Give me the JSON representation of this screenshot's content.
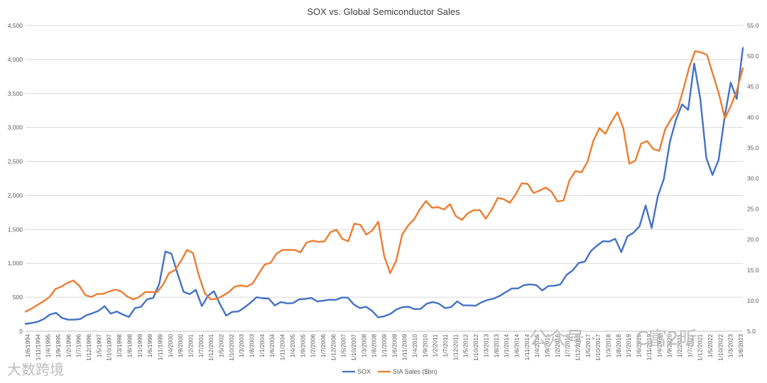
{
  "chart_data": {
    "type": "line",
    "title": "SOX vs. Global Semiconductor Sales",
    "xlabel": "",
    "ylabel": "",
    "y_left_lim": [
      0,
      4500
    ],
    "y_left_ticks": [
      "0",
      "500",
      "1,000",
      "1,500",
      "2,000",
      "2,500",
      "3,000",
      "3,500",
      "4,000",
      "4,500"
    ],
    "y_right_lim": [
      5.0,
      55.0
    ],
    "y_right_ticks": [
      "5.0",
      "10.0",
      "15.0",
      "20.0",
      "25.0",
      "30.0",
      "35.0",
      "40.0",
      "45.0",
      "50.0",
      "55.0"
    ],
    "grid": "horizontal",
    "legend_position": "bottom",
    "x_labels": [
      "1/6/1994",
      "1/11/1994",
      "1/4/1995",
      "1/9/1995",
      "1/2/1996",
      "1/7/1996",
      "1/12/1996",
      "1/5/1997",
      "1/10/1997",
      "1/3/1998",
      "1/8/1998",
      "1/1/1999",
      "1/6/1999",
      "1/11/1999",
      "1/4/2000",
      "1/9/2000",
      "1/2/2001",
      "1/7/2001",
      "1/12/2001",
      "1/5/2002",
      "1/10/2002",
      "1/3/2003",
      "1/8/2003",
      "1/1/2004",
      "1/6/2004",
      "1/11/2004",
      "1/4/2005",
      "1/9/2005",
      "1/2/2006",
      "1/7/2006",
      "1/12/2006",
      "1/5/2007",
      "1/10/2007",
      "1/3/2008",
      "1/8/2008",
      "1/1/2009",
      "1/6/2009",
      "1/11/2009",
      "1/4/2010",
      "1/9/2010",
      "1/2/2011",
      "1/7/2011",
      "1/12/2011",
      "1/5/2012",
      "1/10/2012",
      "1/3/2013",
      "1/8/2013",
      "1/1/2014",
      "1/6/2014",
      "1/11/2014",
      "1/4/2015",
      "1/9/2015",
      "1/2/2016",
      "1/7/2016",
      "1/12/2016",
      "1/5/2017",
      "1/10/2017",
      "1/3/2018",
      "1/8/2018",
      "1/1/2019",
      "1/6/2019",
      "1/11/2019",
      "1/4/2020",
      "1/9/2020",
      "1/2/2021",
      "1/7/2021",
      "1/12/2021",
      "1/5/2022",
      "1/10/2022",
      "1/3/2023",
      "1/8/2023"
    ],
    "series": [
      {
        "name": "SOX",
        "axis": "left",
        "color": "#4472C4",
        "values": [
          110,
          120,
          140,
          180,
          245,
          270,
          195,
          170,
          170,
          180,
          235,
          265,
          300,
          370,
          260,
          290,
          245,
          210,
          340,
          360,
          470,
          490,
          700,
          1175,
          1140,
          850,
          580,
          545,
          610,
          370,
          520,
          590,
          395,
          230,
          285,
          290,
          350,
          420,
          500,
          485,
          480,
          380,
          430,
          410,
          415,
          470,
          475,
          490,
          440,
          450,
          465,
          460,
          495,
          495,
          395,
          340,
          360,
          300,
          205,
          220,
          255,
          320,
          355,
          360,
          325,
          330,
          405,
          430,
          405,
          340,
          355,
          440,
          380,
          380,
          375,
          425,
          460,
          480,
          520,
          575,
          630,
          630,
          680,
          690,
          680,
          600,
          665,
          670,
          690,
          830,
          895,
          1005,
          1025,
          1180,
          1260,
          1325,
          1320,
          1360,
          1165,
          1395,
          1450,
          1545,
          1850,
          1520,
          1985,
          2240,
          2790,
          3110,
          3340,
          3260,
          3940,
          3420,
          2550,
          2300,
          2520,
          3150,
          3660,
          3420,
          4170
        ]
      },
      {
        "name": "SIA Sales ($bn)",
        "axis": "right",
        "color": "#ED7D31",
        "values": [
          8.2,
          8.7,
          9.3,
          9.9,
          10.6,
          11.9,
          12.3,
          12.9,
          13.3,
          12.4,
          10.9,
          10.6,
          11.1,
          11.1,
          11.5,
          11.8,
          11.5,
          10.7,
          10.2,
          10.6,
          11.4,
          11.4,
          11.4,
          12.6,
          14.5,
          15.0,
          16.5,
          18.3,
          17.8,
          14.1,
          11.2,
          10.2,
          10.3,
          10.8,
          11.4,
          12.3,
          12.5,
          12.3,
          12.8,
          14.4,
          15.9,
          16.2,
          17.7,
          18.3,
          18.3,
          18.3,
          17.9,
          19.5,
          19.8,
          19.6,
          19.7,
          21.2,
          21.6,
          20.1,
          19.7,
          22.6,
          22.4,
          20.8,
          21.5,
          22.9,
          17.3,
          14.5,
          16.5,
          20.8,
          22.3,
          23.3,
          25.0,
          26.3,
          25.2,
          25.3,
          24.9,
          25.8,
          23.8,
          23.2,
          24.3,
          24.8,
          24.8,
          23.4,
          24.9,
          26.8,
          26.6,
          26.0,
          27.4,
          29.2,
          29.1,
          27.6,
          28.0,
          28.5,
          27.8,
          26.2,
          26.4,
          29.7,
          31.2,
          31.0,
          32.7,
          36.2,
          38.2,
          37.3,
          39.2,
          40.8,
          38.2,
          32.4,
          32.9,
          35.7,
          36.1,
          34.8,
          34.5,
          38.0,
          39.7,
          41.0,
          44.4,
          48.1,
          50.8,
          50.6,
          50.2,
          47.0,
          43.8,
          39.8,
          41.9,
          44.4,
          48.0
        ]
      }
    ]
  },
  "watermarks": {
    "bottom_left": "大数跨境",
    "bottom_right_prefix": "公众号 · ",
    "bottom_right_suffix": "C富2昕"
  }
}
